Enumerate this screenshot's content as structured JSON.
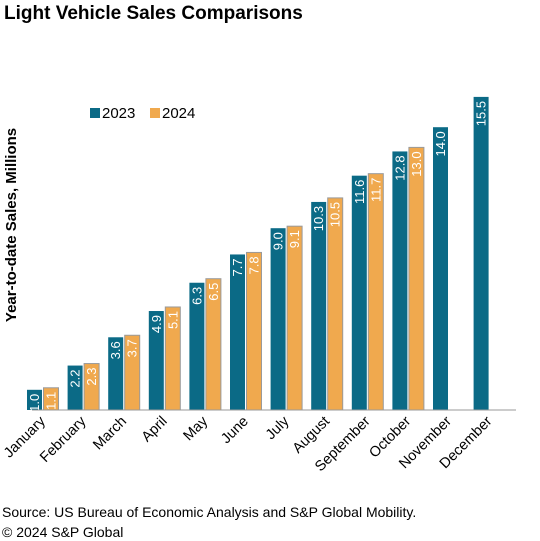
{
  "title": "Light Vehicle Sales Comparisons",
  "footer": {
    "source": "Source: US Bureau of Economic Analysis and S&P Global Mobility.",
    "copyright": "© 2024 S&P Global"
  },
  "colors": {
    "series_2023": "#0b6a86",
    "series_2024": "#f0a94e"
  },
  "chart_data": {
    "type": "bar",
    "title": "Light Vehicle Sales Comparisons",
    "xlabel": "",
    "ylabel": "Year-to-date Sales, Millions",
    "ylim": [
      0,
      16
    ],
    "legend": "top-left",
    "grid": false,
    "categories": [
      "January",
      "February",
      "March",
      "April",
      "May",
      "June",
      "July",
      "August",
      "September",
      "October",
      "November",
      "December"
    ],
    "series": [
      {
        "name": "2023",
        "values": [
          1.0,
          2.2,
          3.6,
          4.9,
          6.3,
          7.7,
          9.0,
          10.3,
          11.6,
          12.8,
          14.0,
          15.5
        ],
        "labels": [
          "1.0",
          "2.2",
          "3.6",
          "4.9",
          "6.3",
          "7.7",
          "9.0",
          "10.3",
          "11.6",
          "12.8",
          "14.0",
          "15.5"
        ]
      },
      {
        "name": "2024",
        "values": [
          1.1,
          2.3,
          3.7,
          5.1,
          6.5,
          7.8,
          9.1,
          10.5,
          11.7,
          13.0,
          null,
          null
        ],
        "labels": [
          "1.1",
          "2.3",
          "3.7",
          "5.1",
          "6.5",
          "7.8",
          "9.1",
          "10.5",
          "11.7",
          "13.0",
          null,
          null
        ]
      }
    ]
  }
}
